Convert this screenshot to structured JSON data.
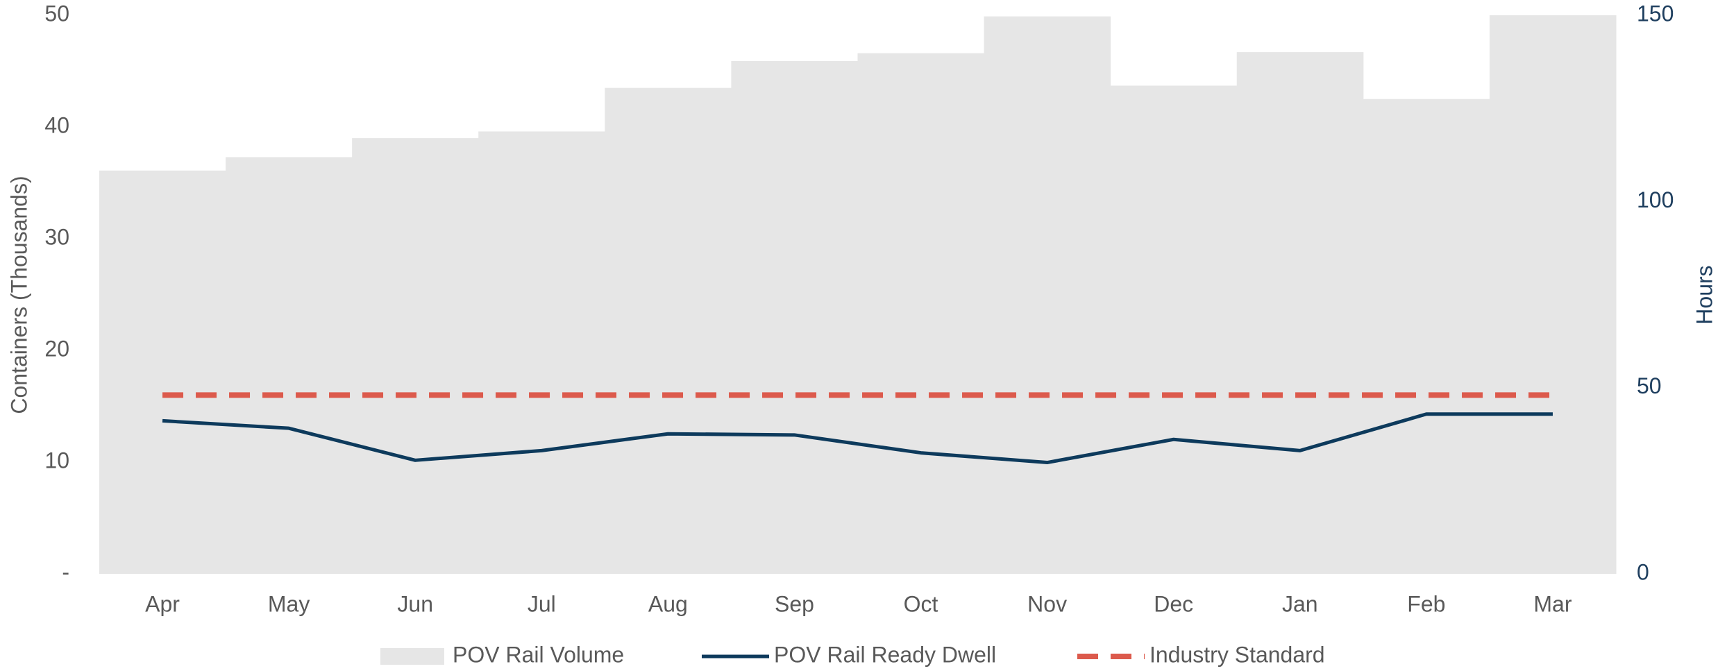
{
  "chart_data": {
    "type": "bar_line",
    "categories": [
      "Apr",
      "May",
      "Jun",
      "Jul",
      "Aug",
      "Sep",
      "Oct",
      "Nov",
      "Dec",
      "Jan",
      "Feb",
      "Mar"
    ],
    "series": [
      {
        "name": "POV Rail Volume",
        "type": "bar",
        "color": "#e6e6e6",
        "axis": "y",
        "values": [
          36.1,
          37.3,
          39.0,
          39.6,
          43.5,
          45.9,
          46.6,
          49.9,
          43.7,
          46.7,
          42.5,
          50.0
        ]
      },
      {
        "name": "POV Rail Ready Dwell",
        "type": "line",
        "color": "#0d3a5c",
        "axis": "y2",
        "values": [
          41.1,
          39.1,
          30.5,
          33.1,
          37.6,
          37.3,
          32.5,
          29.9,
          36.1,
          33.1,
          42.9,
          42.9
        ]
      },
      {
        "name": "Industry Standard",
        "type": "line",
        "dashed": true,
        "color": "#dc5a4c",
        "axis": "y2",
        "values": [
          48,
          48,
          48,
          48,
          48,
          48,
          48,
          48,
          48,
          48,
          48,
          48
        ]
      }
    ],
    "y_label": "Containers (Thousands)",
    "y2_label": "Hours",
    "ylim": [
      0,
      50
    ],
    "yticks": [
      {
        "value": 0,
        "label": "-"
      },
      10,
      20,
      30,
      40,
      50
    ],
    "y2lim": [
      0,
      150
    ],
    "y2ticks": [
      0,
      50,
      100,
      150
    ],
    "legend": "bottom",
    "grid": false
  }
}
